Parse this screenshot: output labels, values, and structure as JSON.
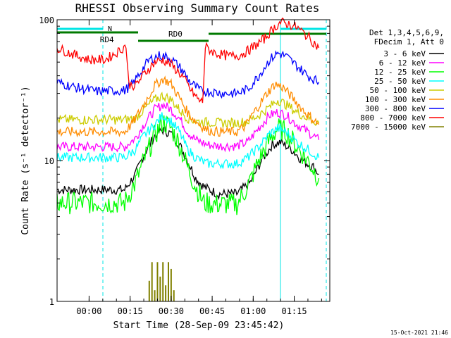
{
  "chart_data": {
    "type": "line",
    "title": "RHESSI Observing Summary Count Rates",
    "xlabel": "Start Time (28-Sep-09 23:45:42)",
    "ylabel": "Count Rate (s⁻¹ detector⁻¹)",
    "yscale": "log",
    "ylim": [
      1,
      100
    ],
    "xlim_minutes": [
      -11.7,
      88
    ],
    "x_ticks": [
      {
        "label": "00:00",
        "min": 0
      },
      {
        "label": "00:15",
        "min": 15
      },
      {
        "label": "00:30",
        "min": 30
      },
      {
        "label": "00:45",
        "min": 45
      },
      {
        "label": "01:00",
        "min": 60
      },
      {
        "label": "01:15",
        "min": 75
      }
    ],
    "y_ticks": [
      {
        "label": "1",
        "v": 1
      },
      {
        "label": "10",
        "v": 10
      },
      {
        "label": "100",
        "v": 100
      }
    ],
    "legend_header": [
      "Det 1,3,4,5,6,9,",
      "FDecim 1, Att 0"
    ],
    "legend_placement": "right",
    "series": [
      {
        "name": "3 - 6 keV",
        "color": "#000000",
        "points": [
          [
            -11.7,
            6.2
          ],
          [
            13,
            6.2
          ],
          [
            17,
            8
          ],
          [
            20,
            11
          ],
          [
            24,
            15
          ],
          [
            27,
            16.5
          ],
          [
            30,
            15.5
          ],
          [
            33,
            13
          ],
          [
            36,
            10
          ],
          [
            39,
            7.5
          ],
          [
            42,
            6.5
          ],
          [
            47,
            5.8
          ],
          [
            54,
            5.8
          ],
          [
            59,
            7
          ],
          [
            63,
            10
          ],
          [
            67,
            13
          ],
          [
            70,
            13.5
          ],
          [
            74,
            12
          ],
          [
            78,
            10
          ],
          [
            82,
            9
          ],
          [
            84,
            8
          ]
        ]
      },
      {
        "name": "6 - 12 keV",
        "color": "#ff00ff",
        "points": [
          [
            -11.7,
            12.5
          ],
          [
            13,
            12.5
          ],
          [
            17,
            14.5
          ],
          [
            20,
            18
          ],
          [
            24,
            23
          ],
          [
            27,
            25
          ],
          [
            30,
            23
          ],
          [
            33,
            20
          ],
          [
            36,
            16
          ],
          [
            39,
            14
          ],
          [
            43,
            13
          ],
          [
            47,
            12.7
          ],
          [
            54,
            12.7
          ],
          [
            58,
            13.5
          ],
          [
            62,
            17
          ],
          [
            66,
            21
          ],
          [
            69,
            22
          ],
          [
            72,
            21
          ],
          [
            76,
            18
          ],
          [
            80,
            16
          ],
          [
            84,
            14
          ]
        ]
      },
      {
        "name": "12 - 25 keV",
        "color": "#00ff00",
        "points": [
          [
            -11.7,
            5
          ],
          [
            13,
            5
          ],
          [
            17,
            7
          ],
          [
            20,
            10
          ],
          [
            24,
            15
          ],
          [
            27,
            19
          ],
          [
            30,
            17
          ],
          [
            33,
            13
          ],
          [
            36,
            9
          ],
          [
            39,
            6.5
          ],
          [
            42,
            5
          ],
          [
            47,
            4.9
          ],
          [
            54,
            4.9
          ],
          [
            58,
            6.5
          ],
          [
            62,
            10
          ],
          [
            66,
            14
          ],
          [
            69,
            17
          ],
          [
            72,
            16
          ],
          [
            76,
            12.5
          ],
          [
            80,
            10
          ],
          [
            84,
            7.5
          ]
        ]
      },
      {
        "name": "25 - 50 keV",
        "color": "#00ffff",
        "points": [
          [
            -11.7,
            10.5
          ],
          [
            13,
            10.5
          ],
          [
            17,
            12
          ],
          [
            20,
            15
          ],
          [
            24,
            18
          ],
          [
            27,
            21
          ],
          [
            30,
            19
          ],
          [
            33,
            16
          ],
          [
            36,
            12
          ],
          [
            39,
            10.5
          ],
          [
            43,
            9.5
          ],
          [
            47,
            9.5
          ],
          [
            54,
            9.5
          ],
          [
            58,
            10.5
          ],
          [
            62,
            12.5
          ],
          [
            66,
            15.5
          ],
          [
            69,
            17
          ],
          [
            72,
            16
          ],
          [
            76,
            13.5
          ],
          [
            80,
            12
          ],
          [
            84,
            10.5
          ]
        ]
      },
      {
        "name": "50 - 100 keV",
        "color": "#cccc00",
        "points": [
          [
            -11.7,
            19.5
          ],
          [
            13,
            19.5
          ],
          [
            17,
            20
          ],
          [
            20,
            23
          ],
          [
            24,
            27
          ],
          [
            27,
            29
          ],
          [
            30,
            27
          ],
          [
            33,
            23
          ],
          [
            36,
            20
          ],
          [
            39,
            19
          ],
          [
            47,
            18.5
          ],
          [
            54,
            18.5
          ],
          [
            58,
            19
          ],
          [
            62,
            21
          ],
          [
            66,
            24
          ],
          [
            69,
            27
          ],
          [
            72,
            25
          ],
          [
            76,
            22
          ],
          [
            80,
            20
          ],
          [
            84,
            18.5
          ]
        ]
      },
      {
        "name": "100 - 300 keV",
        "color": "#ff8c00",
        "points": [
          [
            -11.7,
            16
          ],
          [
            13,
            16
          ],
          [
            16,
            18.5
          ],
          [
            20,
            25
          ],
          [
            24,
            34
          ],
          [
            27,
            38
          ],
          [
            30,
            35
          ],
          [
            33,
            28
          ],
          [
            36,
            22
          ],
          [
            39,
            19
          ],
          [
            43,
            16.5
          ],
          [
            47,
            16
          ],
          [
            54,
            16
          ],
          [
            57,
            17.5
          ],
          [
            61,
            23
          ],
          [
            65,
            30
          ],
          [
            68,
            35
          ],
          [
            71,
            33
          ],
          [
            75,
            27
          ],
          [
            79,
            22
          ],
          [
            84,
            18
          ]
        ]
      },
      {
        "name": "300 - 800 keV",
        "color": "#0000ff",
        "points": [
          [
            -11.7,
            36
          ],
          [
            -5,
            33
          ],
          [
            3,
            31
          ],
          [
            13,
            31.5
          ],
          [
            16,
            35
          ],
          [
            19,
            43
          ],
          [
            22,
            52
          ],
          [
            26,
            56
          ],
          [
            30,
            53
          ],
          [
            34,
            44
          ],
          [
            37,
            36
          ],
          [
            41,
            31
          ],
          [
            43,
            31
          ],
          [
            50,
            30
          ],
          [
            54,
            30
          ],
          [
            58,
            32
          ],
          [
            62,
            40
          ],
          [
            66,
            52
          ],
          [
            69,
            58
          ],
          [
            72,
            55
          ],
          [
            76,
            47
          ],
          [
            80,
            40
          ],
          [
            84,
            36
          ]
        ]
      },
      {
        "name": "800 - 7000 keV",
        "color": "#ff0000",
        "points": [
          [
            -11.7,
            63
          ],
          [
            -6,
            57
          ],
          [
            0,
            52
          ],
          [
            6,
            52
          ],
          [
            11,
            60
          ],
          [
            13.5,
            66
          ],
          [
            14.5,
            35
          ],
          [
            17,
            34
          ],
          [
            20,
            41
          ],
          [
            24,
            50
          ],
          [
            27,
            52
          ],
          [
            30,
            48
          ],
          [
            34,
            40
          ],
          [
            37,
            32
          ],
          [
            40,
            27
          ],
          [
            41.5,
            26
          ],
          [
            42.5,
            64
          ],
          [
            46,
            58
          ],
          [
            51,
            55
          ],
          [
            55,
            56
          ],
          [
            58,
            60
          ],
          [
            61,
            66
          ],
          [
            64,
            73
          ],
          [
            67,
            85
          ],
          [
            70,
            96
          ],
          [
            73,
            93
          ],
          [
            76,
            88
          ],
          [
            80,
            76
          ],
          [
            84,
            63
          ]
        ]
      },
      {
        "name": "7000 - 15000 keV",
        "color": "#808000",
        "points": [
          [
            22,
            1.4
          ],
          [
            23,
            1.9
          ],
          [
            24,
            1.2
          ],
          [
            25,
            1.9
          ],
          [
            26,
            1.5
          ],
          [
            27,
            1.9
          ],
          [
            28,
            1.3
          ],
          [
            29,
            1.9
          ],
          [
            30,
            1.7
          ],
          [
            31,
            1.2
          ]
        ]
      }
    ],
    "attenuator_labels": [
      {
        "text": "RD4",
        "min": 6
      },
      {
        "text": "RD0",
        "min": 29
      }
    ]
  },
  "footer_date": "15-Oct-2021 21:46"
}
